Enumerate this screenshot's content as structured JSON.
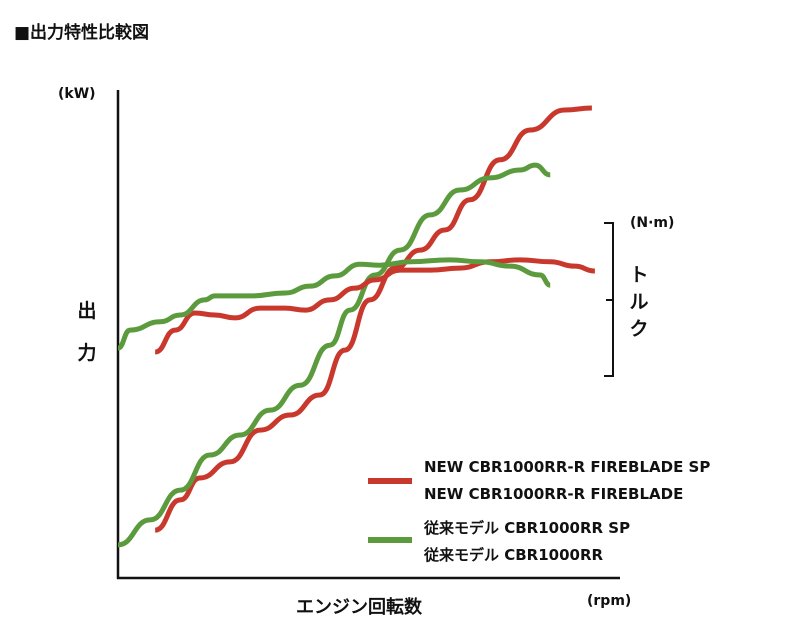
{
  "title": "■出力特性比較図",
  "chart_data": {
    "type": "line",
    "title": "出力特性比較図",
    "xlabel": "エンジン回転数",
    "xunit": "(rpm)",
    "ylabel": "出力",
    "yunit": "(kW)",
    "y2label": "トルク",
    "y2unit": "(N·m)",
    "xlim": [
      0,
      100
    ],
    "ylim": [
      0,
      100
    ],
    "grid": false,
    "ticks": "none (relative scale)",
    "legend_position": "bottom-right",
    "series": [
      {
        "name": "NEW CBR1000RR-R FIREBLADE SP / NEW CBR1000RR-R FIREBLADE",
        "kind": "output",
        "color": "#c9382d",
        "x": [
          7.4,
          12.4,
          16.3,
          22.3,
          28.3,
          34.3,
          40.2,
          45.2,
          50.2,
          55.2,
          60.2,
          65.1,
          70.1,
          76.1,
          82.1,
          89.0,
          94.4
        ],
        "y": [
          9.8,
          16.0,
          20.5,
          23.8,
          30.3,
          33.4,
          37.5,
          46.7,
          57.0,
          63.5,
          67.2,
          71.3,
          77.5,
          85.7,
          91.8,
          95.9,
          96.3
        ]
      },
      {
        "name": "従来モデル CBR1000RR SP / 従来モデル CBR1000RR",
        "kind": "output",
        "color": "#5c9b3d",
        "x": [
          0,
          6.4,
          12.4,
          18.3,
          24.3,
          30.3,
          36.3,
          42.2,
          46.2,
          51.2,
          56.2,
          62.2,
          68.1,
          74.1,
          80.1,
          83.1,
          86.1
        ],
        "y": [
          6.8,
          11.9,
          18.0,
          25.2,
          29.3,
          34.4,
          39.5,
          47.7,
          54.9,
          62.1,
          67.2,
          74.4,
          79.5,
          82.0,
          83.6,
          84.6,
          82.6
        ]
      },
      {
        "name": "NEW CBR1000RR-R FIREBLADE SP / NEW CBR1000RR-R FIREBLADE",
        "kind": "torque",
        "color": "#c9382d",
        "x": [
          7.4,
          11.4,
          15.3,
          19.3,
          23.3,
          28.3,
          33.3,
          37.3,
          42.2,
          47.2,
          51.2,
          56.2,
          62.2,
          68.1,
          74.1,
          80.1,
          86.1,
          91.0,
          95.0
        ],
        "y": [
          46.3,
          50.8,
          54.3,
          53.9,
          53.3,
          55.3,
          55.3,
          54.9,
          57.0,
          59.4,
          61.1,
          63.1,
          63.1,
          63.5,
          64.8,
          65.2,
          64.8,
          63.9,
          62.9
        ]
      },
      {
        "name": "従来モデル CBR1000RR SP / 従来モデル CBR1000RR",
        "kind": "torque",
        "color": "#5c9b3d",
        "x": [
          0,
          2.4,
          8.4,
          12.4,
          17.3,
          19.3,
          26.3,
          33.3,
          38.2,
          43.2,
          48.2,
          52.2,
          58.2,
          66.1,
          72.1,
          78.1,
          84.1,
          86.1
        ],
        "y": [
          47.1,
          50.8,
          52.5,
          53.9,
          57.0,
          57.8,
          57.8,
          58.4,
          59.8,
          61.9,
          64.3,
          64.1,
          64.8,
          65.2,
          64.8,
          63.9,
          62.1,
          60.0
        ]
      }
    ],
    "legend": [
      {
        "color": "#c9382d",
        "lines": [
          "NEW CBR1000RR-R FIREBLADE SP",
          "NEW CBR1000RR-R FIREBLADE"
        ]
      },
      {
        "color": "#5c9b3d",
        "lines": [
          "従来モデル CBR1000RR SP",
          "従来モデル CBR1000RR"
        ]
      }
    ]
  }
}
